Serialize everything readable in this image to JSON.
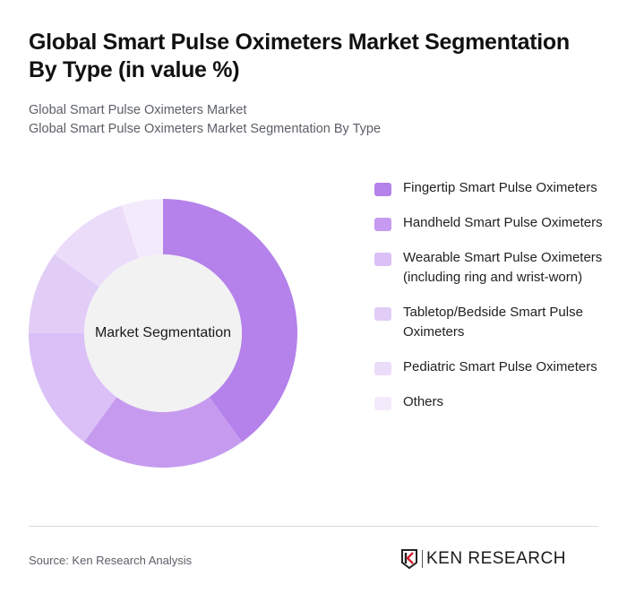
{
  "header": {
    "title": "Global Smart Pulse Oximeters Market Segmentation By Type (in value %)",
    "subtitle_line1": "Global Smart Pulse Oximeters Market",
    "subtitle_line2": "Global Smart Pulse Oximeters Market Segmentation By Type"
  },
  "chart": {
    "center_label": "Market Segmentation"
  },
  "legend": {
    "items": [
      {
        "label": "Fingertip Smart Pulse Oximeters",
        "color": "#b482ea"
      },
      {
        "label": "Handheld Smart Pulse Oximeters",
        "color": "#c69bef"
      },
      {
        "label": "Wearable Smart Pulse Oximeters (including ring and wrist-worn)",
        "color": "#dac0f6"
      },
      {
        "label": "Tabletop/Bedside Smart Pulse Oximeters",
        "color": "#e2cdf7"
      },
      {
        "label": "Pediatric Smart Pulse Oximeters",
        "color": "#ebdcfa"
      },
      {
        "label": "Others",
        "color": "#f3ebfc"
      }
    ]
  },
  "footer": {
    "source": "Source: Ken Research Analysis",
    "logo_text": "KEN RESEARCH"
  },
  "chart_data": {
    "type": "pie",
    "title": "Global Smart Pulse Oximeters Market Segmentation By Type (in value %)",
    "subtitle": "Global Smart Pulse Oximeters Market Segmentation By Type",
    "donut": true,
    "center_label": "Market Segmentation",
    "categories": [
      "Fingertip Smart Pulse Oximeters",
      "Handheld Smart Pulse Oximeters",
      "Wearable Smart Pulse Oximeters (including ring and wrist-worn)",
      "Tabletop/Bedside Smart Pulse Oximeters",
      "Pediatric Smart Pulse Oximeters",
      "Others"
    ],
    "values": [
      40,
      20,
      15,
      10,
      10,
      5
    ],
    "colors": [
      "#b482ea",
      "#c69bef",
      "#dac0f6",
      "#e2cdf7",
      "#ebdcfa",
      "#f3ebfc"
    ],
    "unit": "%",
    "legend_position": "right",
    "start_angle_deg": 0,
    "direction": "clockwise"
  }
}
